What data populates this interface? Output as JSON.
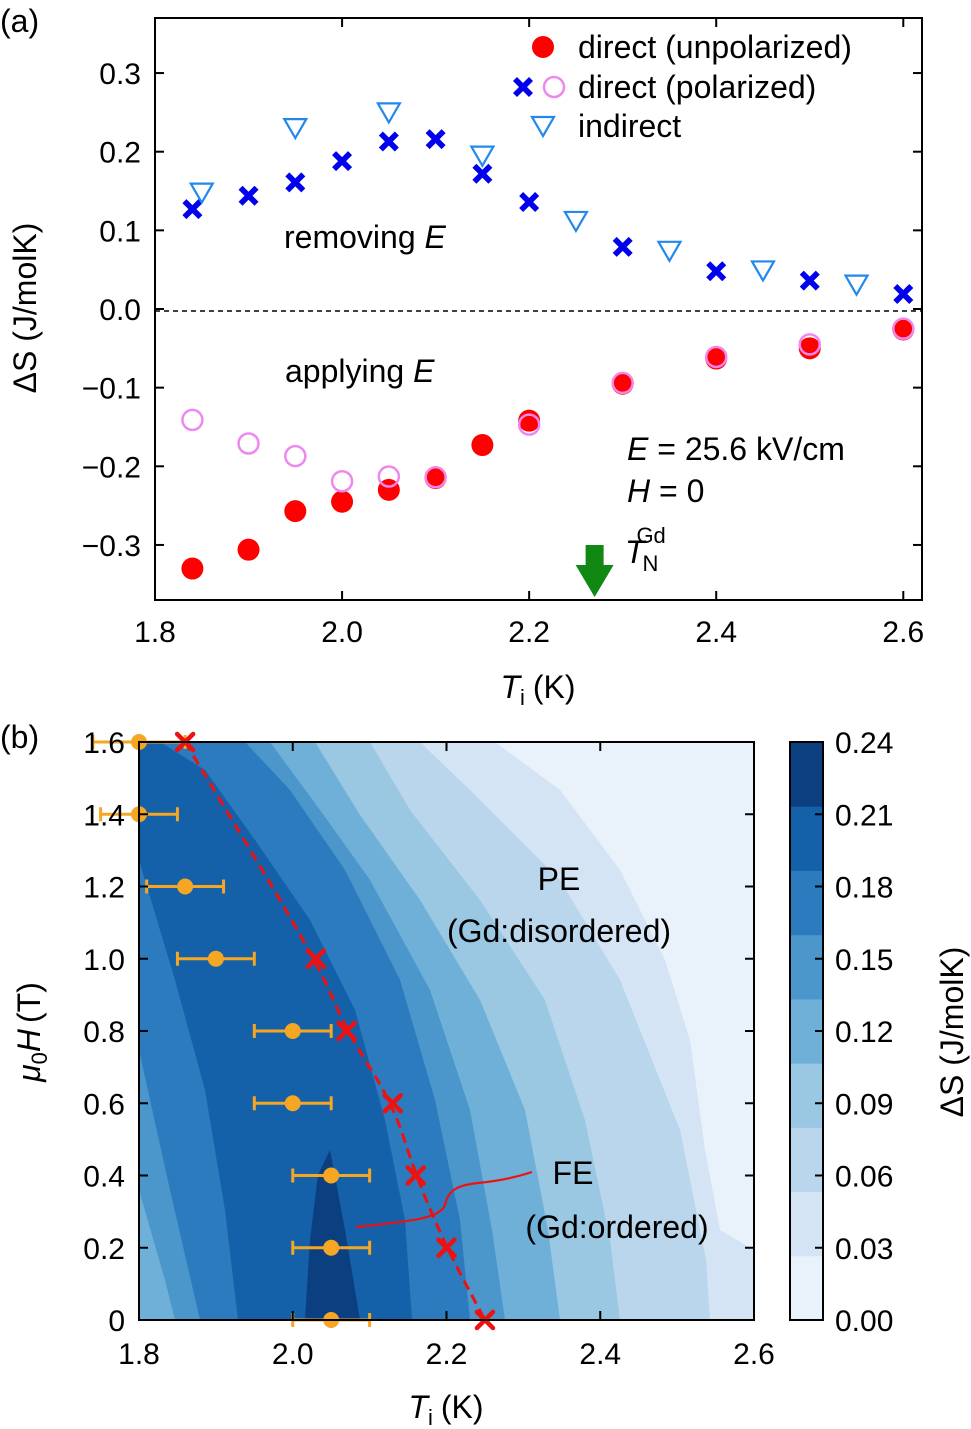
{
  "chart_data": [
    {
      "panel": "(a)",
      "type": "scatter",
      "xlabel": "T",
      "xlabel_sub": "i",
      "xlabel_unit": "(K)",
      "ylabel": "ΔS (J/molK)",
      "xlim": [
        1.8,
        2.62
      ],
      "ylim": [
        -0.37,
        0.37
      ],
      "xticks": [
        1.8,
        2.0,
        2.2,
        2.4,
        2.6
      ],
      "xtick_labels": [
        "1.8",
        "2.0",
        "2.2",
        "2.4",
        "2.6"
      ],
      "yticks": [
        -0.3,
        -0.2,
        -0.1,
        0.0,
        0.1,
        0.2,
        0.3
      ],
      "ytick_labels": [
        "−0.3",
        "−0.2",
        "−0.1",
        "0.0",
        "0.1",
        "0.2",
        "0.3"
      ],
      "legend_position": "top-right",
      "legend": [
        "direct (unpolarized)",
        "direct (polarized)",
        "indirect"
      ],
      "series": [
        {
          "name": "direct (unpolarized)",
          "marker": "filled-circle",
          "color": "#ff0000",
          "x": [
            1.84,
            1.9,
            1.95,
            2.0,
            2.05,
            2.1,
            2.15,
            2.2,
            2.3,
            2.4,
            2.5,
            2.6
          ],
          "y": [
            -0.33,
            -0.306,
            -0.257,
            -0.245,
            -0.23,
            -0.215,
            -0.173,
            -0.142,
            -0.095,
            -0.063,
            -0.05,
            -0.026
          ]
        },
        {
          "name": "direct (polarized)",
          "role": "removing E",
          "marker": "x-cross",
          "color": "#0000ee",
          "x": [
            1.84,
            1.9,
            1.95,
            2.0,
            2.05,
            2.1,
            2.15,
            2.2,
            2.3,
            2.4,
            2.5,
            2.6
          ],
          "y": [
            0.127,
            0.144,
            0.161,
            0.188,
            0.213,
            0.216,
            0.172,
            0.136,
            0.079,
            0.048,
            0.036,
            0.019
          ]
        },
        {
          "name": "direct (polarized)",
          "role": "applying E",
          "marker": "open-circle",
          "color": "#ee88ee",
          "x": [
            1.84,
            1.9,
            1.95,
            2.0,
            2.05,
            2.1,
            2.2,
            2.3,
            2.4,
            2.5,
            2.6
          ],
          "y": [
            -0.141,
            -0.171,
            -0.187,
            -0.219,
            -0.213,
            -0.214,
            -0.147,
            -0.094,
            -0.061,
            -0.045,
            -0.025
          ]
        },
        {
          "name": "indirect",
          "marker": "open-triangle-down",
          "color": "#2288ee",
          "x": [
            1.85,
            1.95,
            2.05,
            2.15,
            2.25,
            2.35,
            2.45,
            2.55
          ],
          "y": [
            0.148,
            0.23,
            0.25,
            0.195,
            0.112,
            0.074,
            0.049,
            0.031
          ]
        }
      ],
      "annotations": {
        "removing_prefix": "removing ",
        "applying_prefix": "applying ",
        "field_symbol": "E",
        "field_eq": "E = 25.6 kV/cm",
        "field_eq_val": " = 25.6 kV/cm",
        "h_sym": "H",
        "h_val": " = 0",
        "tn_symbol": "T",
        "tn_sub": "N",
        "tn_sup": "Gd",
        "tn_x": 2.27
      },
      "zero_line": true
    },
    {
      "panel": "(b)",
      "type": "heatmap",
      "xlabel": "T",
      "xlabel_sub": "i",
      "xlabel_unit": "(K)",
      "ylabel_mu": "μ",
      "ylabel_sub": "0",
      "ylabel_h": "H",
      "ylabel_unit": "(T)",
      "xlim": [
        1.8,
        2.6
      ],
      "ylim": [
        0.0,
        1.6
      ],
      "xticks": [
        1.8,
        2.0,
        2.2,
        2.4,
        2.6
      ],
      "xtick_labels": [
        "1.8",
        "2.0",
        "2.2",
        "2.4",
        "2.6"
      ],
      "yticks": [
        0,
        0.2,
        0.4,
        0.6,
        0.8,
        1.0,
        1.2,
        1.4,
        1.6
      ],
      "ytick_labels": [
        "0",
        "0.2",
        "0.4",
        "0.6",
        "0.8",
        "1.0",
        "1.2",
        "1.4",
        "1.6"
      ],
      "colorbar": {
        "label": "ΔS (J/molK)",
        "levels": [
          0.0,
          0.03,
          0.06,
          0.09,
          0.12,
          0.15,
          0.18,
          0.21,
          0.24
        ],
        "tick_labels": [
          "0.00",
          "0.03",
          "0.06",
          "0.09",
          "0.12",
          "0.15",
          "0.18",
          "0.21",
          "0.24"
        ],
        "colors": [
          "#e9f2fb",
          "#d4e4f4",
          "#bad6ec",
          "#9ac7e2",
          "#6fb0d8",
          "#4b96cb",
          "#2b7bbe",
          "#1460a9",
          "#0b3f7f"
        ]
      },
      "regions": {
        "pe": "PE",
        "pe_sub": "(Gd:disordered)",
        "fe": "FE",
        "fe_sub": "(Gd:ordered)"
      },
      "orange_points": {
        "color": "#f5a623",
        "x": [
          1.8,
          1.8,
          1.86,
          1.9,
          2.0,
          2.0,
          2.05,
          2.05,
          2.05
        ],
        "y": [
          1.6,
          1.4,
          1.2,
          1.0,
          0.8,
          0.6,
          0.4,
          0.2,
          0.0
        ],
        "xerr": [
          0.06,
          0.05,
          0.05,
          0.05,
          0.05,
          0.05,
          0.05,
          0.05,
          0.05
        ]
      },
      "red_crosses": {
        "color": "#ee1111",
        "x": [
          1.86,
          2.03,
          2.07,
          2.13,
          2.16,
          2.2,
          2.25
        ],
        "y": [
          1.6,
          1.0,
          0.8,
          0.6,
          0.4,
          0.2,
          0.0
        ]
      }
    }
  ]
}
